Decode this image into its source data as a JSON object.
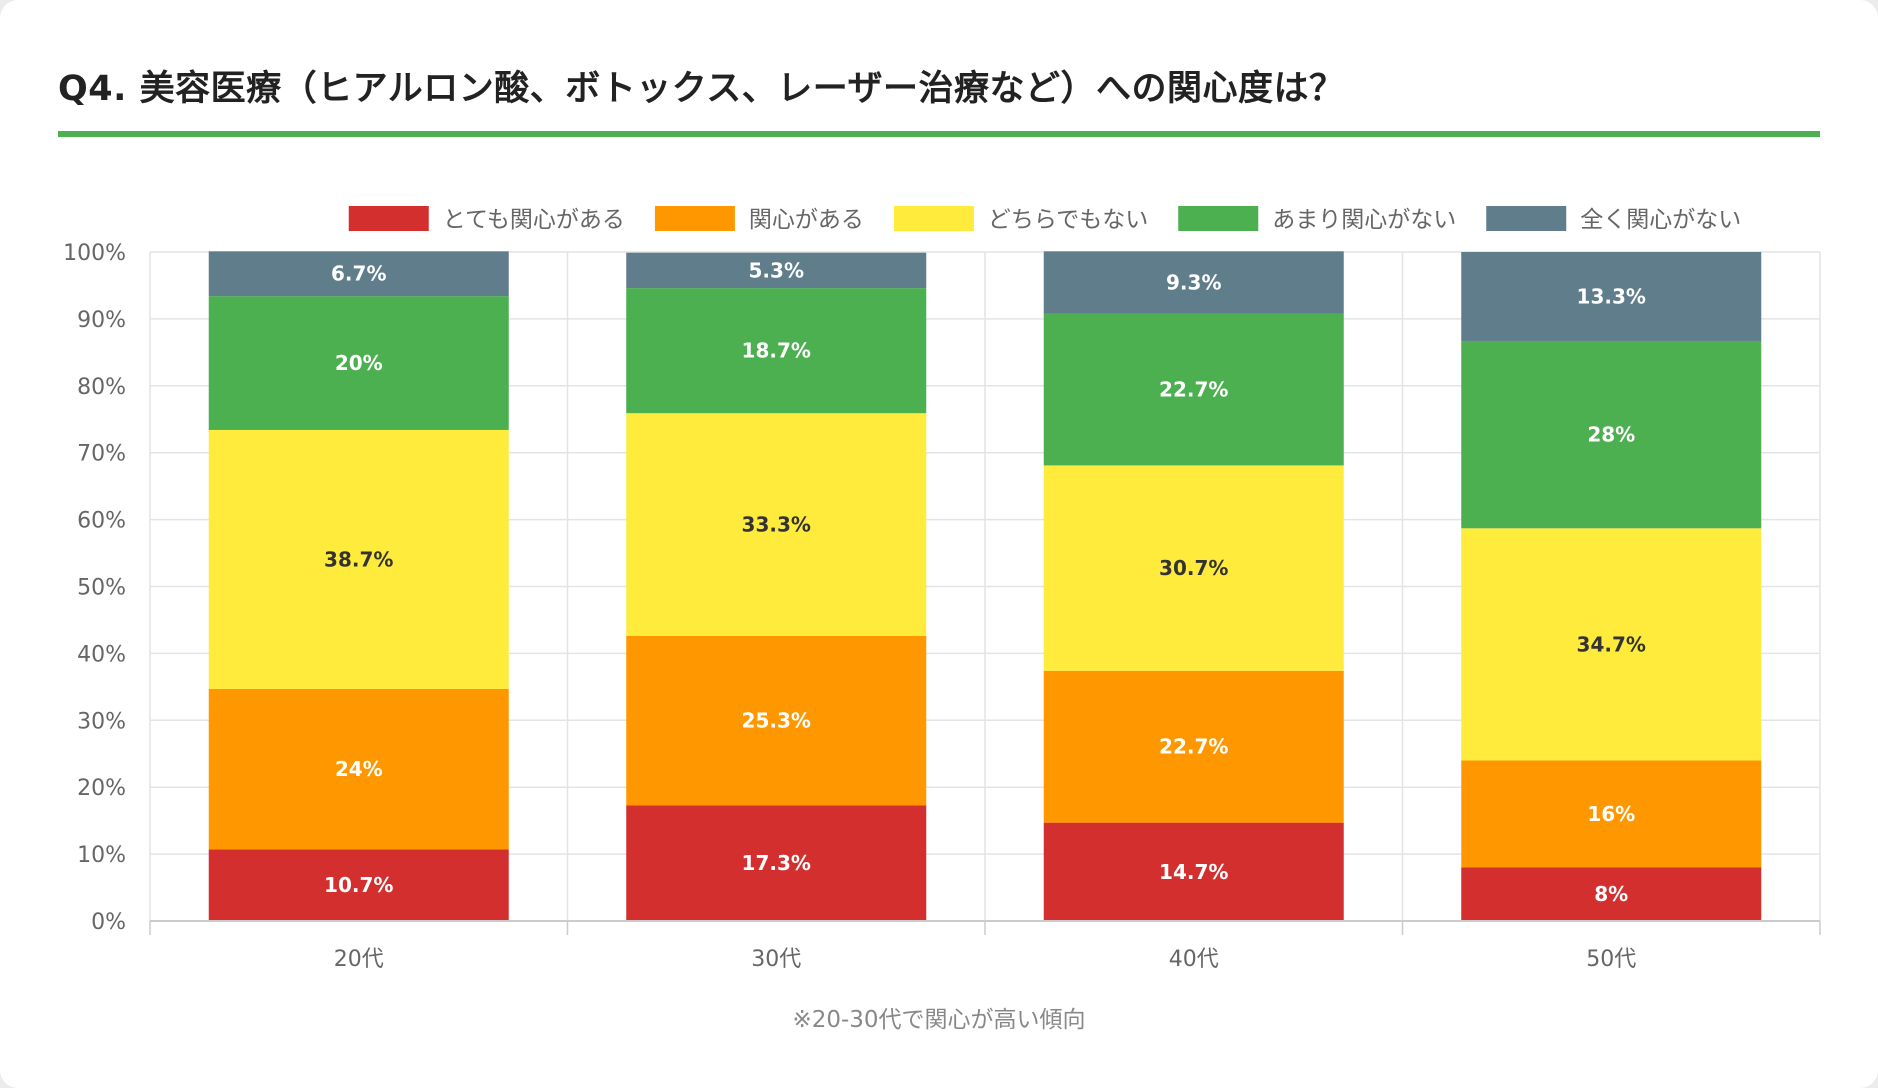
{
  "title": "Q4. 美容医療（ヒアルロン酸、ボトックス、レーザー治療など）への関心度は？",
  "note": "※20-30代で関心が高い傾向",
  "chart_data": {
    "type": "bar",
    "stacked": true,
    "categories": [
      "20代",
      "30代",
      "40代",
      "50代"
    ],
    "ylim": [
      0,
      100
    ],
    "ytick_step": 10,
    "ytick_suffix": "%",
    "legend_position": "top",
    "grid": true,
    "series": [
      {
        "name": "とても関心がある",
        "color": "#d32f2f",
        "label_color": "#ffffff",
        "values": [
          10.7,
          17.3,
          14.7,
          8
        ]
      },
      {
        "name": "関心がある",
        "color": "#ff9800",
        "label_color": "#ffffff",
        "values": [
          24,
          25.3,
          22.7,
          16
        ]
      },
      {
        "name": "どちらでもない",
        "color": "#ffeb3b",
        "label_color": "#333333",
        "values": [
          38.7,
          33.3,
          30.7,
          34.7
        ]
      },
      {
        "name": "あまり関心がない",
        "color": "#4caf50",
        "label_color": "#ffffff",
        "values": [
          20,
          18.7,
          22.7,
          28
        ]
      },
      {
        "name": "全く関心がない",
        "color": "#607d8b",
        "label_color": "#ffffff",
        "values": [
          6.7,
          5.3,
          9.3,
          13.3
        ]
      }
    ]
  }
}
